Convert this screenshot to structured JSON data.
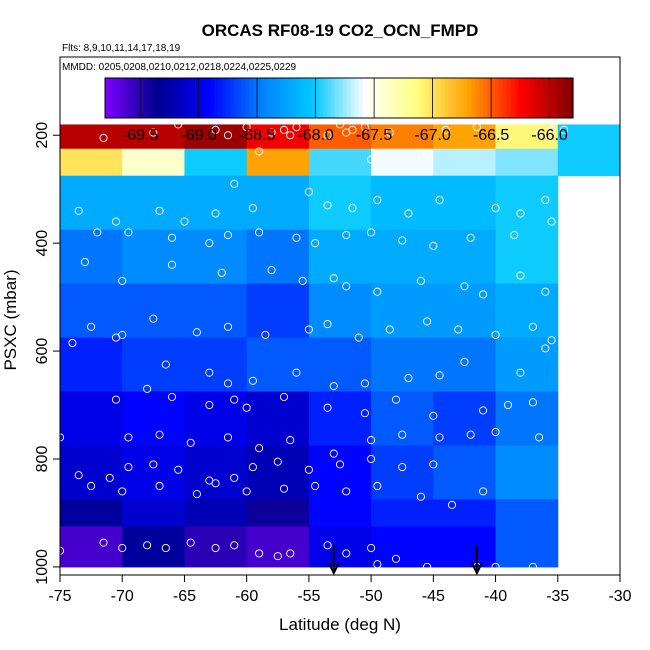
{
  "chart_data": {
    "type": "heatmap",
    "title": "ORCAS RF08-19 CO2_OCN_FMPD",
    "subtitle_flights": "Flts: 8,9,10,11,14,17,18,19",
    "subtitle_dates": "MMDD: 0205,0208,0210,0212,0218,0224,0225,0229",
    "xlabel": "Latitude (deg N)",
    "ylabel": "PSXC (mbar)",
    "xlim": [
      -75,
      -30
    ],
    "ylim": [
      1000,
      100
    ],
    "x_ticks": [
      -75,
      -70,
      -65,
      -60,
      -55,
      -50,
      -45,
      -40,
      -35,
      -30
    ],
    "x_tick_labels": [
      "-75",
      "-70",
      "-65",
      "-60",
      "-55",
      "-50",
      "-45",
      "-40",
      "-35",
      "-30"
    ],
    "y_ticks": [
      200,
      400,
      600,
      800,
      1000
    ],
    "y_tick_labels": [
      "200",
      "400",
      "600",
      "800",
      "1000"
    ],
    "colorbar": {
      "range": [
        -69.8,
        -65.8
      ],
      "ticks": [
        -69.5,
        -69.0,
        -68.5,
        -68.0,
        -67.5,
        -67.0,
        -66.5,
        -66.0
      ],
      "tick_labels": [
        "-69.5",
        "-69.0",
        "-68.5",
        "-68.0",
        "-67.5",
        "-67.0",
        "-66.5",
        "-66.0"
      ],
      "colors": [
        "#7f00ff",
        "#00008f",
        "#0000ff",
        "#0080ff",
        "#00c8ff",
        "#ffffff",
        "#ffff80",
        "#ffa000",
        "#ff0000",
        "#800000"
      ]
    },
    "x_bins": [
      -75,
      -70,
      -65,
      -60,
      -55,
      -50,
      -45,
      -40,
      -35,
      -30
    ],
    "y_bins": [
      100,
      225,
      275,
      325,
      375,
      425,
      475,
      525,
      575,
      625,
      675,
      725,
      775,
      825,
      875,
      925,
      975,
      1025
    ],
    "grid_x_step": 5,
    "grid_p_step": 50,
    "cells": [
      [
        -66.0,
        -66.0,
        -65.9,
        -66.2,
        -66.5,
        -66.6,
        -66.7,
        -67.1,
        -68.0
      ],
      [
        -67.0,
        -67.4,
        -68.0,
        -66.7,
        -67.9,
        -67.6,
        -67.7,
        -67.8,
        -68.0
      ],
      [
        -68.2,
        -68.2,
        -68.2,
        -68.2,
        -68.0,
        -68.1,
        -68.1,
        -68.0,
        null
      ],
      [
        -68.5,
        -68.4,
        -68.4,
        -68.5,
        -68.2,
        -68.2,
        -68.2,
        -68.0,
        null
      ],
      [
        -68.6,
        -68.6,
        -68.6,
        -68.7,
        -68.4,
        -68.3,
        -68.3,
        -68.2,
        null
      ],
      [
        -68.8,
        -68.7,
        -68.7,
        -68.6,
        -68.6,
        -68.5,
        -68.5,
        -68.3,
        null
      ],
      [
        -69.0,
        -68.9,
        -69.0,
        -69.1,
        -68.8,
        -68.6,
        -68.7,
        -68.5,
        null
      ],
      [
        -69.1,
        -69.0,
        -69.1,
        -69.2,
        -68.9,
        -68.7,
        -68.6,
        -68.4,
        null
      ],
      [
        -69.3,
        -69.1,
        -69.2,
        -69.4,
        -68.9,
        -68.8,
        -68.8,
        -68.6,
        null
      ],
      [
        -69.6,
        -69.3,
        -69.5,
        -69.6,
        -69.0,
        -68.9,
        -68.9,
        -68.6,
        null
      ]
    ],
    "cell_rows_pressure": [
      [
        100,
        225
      ],
      [
        225,
        275
      ],
      [
        275,
        375
      ],
      [
        375,
        475
      ],
      [
        475,
        575
      ],
      [
        575,
        675
      ],
      [
        675,
        775
      ],
      [
        775,
        875
      ],
      [
        875,
        925
      ],
      [
        925,
        1025
      ]
    ],
    "arrows_lat": [
      -53,
      -41.5
    ],
    "sample_points": [
      [
        -71.5,
        205
      ],
      [
        -67.5,
        195
      ],
      [
        -65.5,
        180
      ],
      [
        -62.5,
        190
      ],
      [
        -61.5,
        200
      ],
      [
        -60.0,
        185
      ],
      [
        -58.0,
        195
      ],
      [
        -57.0,
        190
      ],
      [
        -56.5,
        200
      ],
      [
        -56.0,
        185
      ],
      [
        -53.5,
        200
      ],
      [
        -52.5,
        180
      ],
      [
        -52.0,
        195
      ],
      [
        -51.5,
        190
      ],
      [
        -50.5,
        185
      ],
      [
        -48.5,
        195
      ],
      [
        -44.0,
        190
      ],
      [
        -41.5,
        185
      ],
      [
        -39.0,
        205
      ],
      [
        -36.5,
        195
      ],
      [
        -35.5,
        190
      ],
      [
        -34.5,
        190
      ],
      [
        -59.0,
        230
      ],
      [
        -50.0,
        245
      ],
      [
        -45.5,
        235
      ],
      [
        -61.0,
        290
      ],
      [
        -73.5,
        340
      ],
      [
        -70.5,
        360
      ],
      [
        -67.0,
        340
      ],
      [
        -65.0,
        360
      ],
      [
        -62.5,
        345
      ],
      [
        -59.5,
        335
      ],
      [
        -55.0,
        305
      ],
      [
        -53.5,
        330
      ],
      [
        -51.5,
        335
      ],
      [
        -49.5,
        320
      ],
      [
        -47.0,
        345
      ],
      [
        -44.5,
        320
      ],
      [
        -40.0,
        335
      ],
      [
        -38.0,
        345
      ],
      [
        -36.0,
        320
      ],
      [
        -35.5,
        360
      ],
      [
        -72.0,
        380
      ],
      [
        -69.5,
        380
      ],
      [
        -66.0,
        390
      ],
      [
        -63.0,
        400
      ],
      [
        -61.5,
        385
      ],
      [
        -59.0,
        380
      ],
      [
        -56.0,
        390
      ],
      [
        -54.5,
        400
      ],
      [
        -52.0,
        385
      ],
      [
        -50.0,
        380
      ],
      [
        -47.5,
        395
      ],
      [
        -45.0,
        405
      ],
      [
        -42.0,
        390
      ],
      [
        -38.5,
        385
      ],
      [
        -73.0,
        435
      ],
      [
        -70.0,
        470
      ],
      [
        -66.0,
        440
      ],
      [
        -62.0,
        455
      ],
      [
        -58.0,
        450
      ],
      [
        -55.5,
        470
      ],
      [
        -53.0,
        465
      ],
      [
        -52.0,
        480
      ],
      [
        -49.5,
        490
      ],
      [
        -46.0,
        470
      ],
      [
        -42.5,
        480
      ],
      [
        -41.0,
        495
      ],
      [
        -38.0,
        460
      ],
      [
        -36.0,
        490
      ],
      [
        -72.5,
        555
      ],
      [
        -70.0,
        570
      ],
      [
        -67.5,
        540
      ],
      [
        -64.0,
        565
      ],
      [
        -61.5,
        555
      ],
      [
        -58.5,
        570
      ],
      [
        -55.0,
        560
      ],
      [
        -53.5,
        550
      ],
      [
        -51.0,
        575
      ],
      [
        -48.5,
        560
      ],
      [
        -45.5,
        545
      ],
      [
        -43.0,
        560
      ],
      [
        -40.0,
        570
      ],
      [
        -37.0,
        555
      ],
      [
        -35.5,
        580
      ],
      [
        -74.0,
        585
      ],
      [
        -70.5,
        575
      ],
      [
        -66.5,
        625
      ],
      [
        -63.0,
        640
      ],
      [
        -61.5,
        660
      ],
      [
        -59.5,
        655
      ],
      [
        -56.0,
        640
      ],
      [
        -53.0,
        665
      ],
      [
        -50.5,
        660
      ],
      [
        -47.0,
        650
      ],
      [
        -44.5,
        645
      ],
      [
        -42.5,
        620
      ],
      [
        -38.0,
        640
      ],
      [
        -36.0,
        595
      ],
      [
        -70.5,
        690
      ],
      [
        -68.0,
        670
      ],
      [
        -66.0,
        685
      ],
      [
        -63.0,
        700
      ],
      [
        -61.0,
        690
      ],
      [
        -60.0,
        705
      ],
      [
        -57.0,
        685
      ],
      [
        -53.5,
        705
      ],
      [
        -50.5,
        715
      ],
      [
        -48.0,
        690
      ],
      [
        -45.0,
        720
      ],
      [
        -41.0,
        710
      ],
      [
        -39.0,
        700
      ],
      [
        -37.0,
        695
      ],
      [
        -75.0,
        760
      ],
      [
        -69.5,
        760
      ],
      [
        -67.0,
        755
      ],
      [
        -64.5,
        770
      ],
      [
        -61.5,
        760
      ],
      [
        -59.0,
        780
      ],
      [
        -56.5,
        765
      ],
      [
        -53.0,
        790
      ],
      [
        -50.0,
        765
      ],
      [
        -47.5,
        755
      ],
      [
        -44.5,
        760
      ],
      [
        -42.0,
        755
      ],
      [
        -40.0,
        750
      ],
      [
        -36.5,
        760
      ],
      [
        -73.5,
        830
      ],
      [
        -71.0,
        835
      ],
      [
        -69.5,
        815
      ],
      [
        -67.5,
        810
      ],
      [
        -65.5,
        820
      ],
      [
        -63.0,
        840
      ],
      [
        -61.0,
        835
      ],
      [
        -59.5,
        815
      ],
      [
        -57.5,
        805
      ],
      [
        -55.0,
        820
      ],
      [
        -52.5,
        810
      ],
      [
        -50.0,
        800
      ],
      [
        -47.5,
        815
      ],
      [
        -45.0,
        810
      ],
      [
        -72.5,
        850
      ],
      [
        -70.0,
        860
      ],
      [
        -67.0,
        850
      ],
      [
        -64.0,
        865
      ],
      [
        -62.5,
        845
      ],
      [
        -60.0,
        860
      ],
      [
        -57.0,
        855
      ],
      [
        -54.5,
        850
      ],
      [
        -52.0,
        860
      ],
      [
        -49.5,
        850
      ],
      [
        -46.0,
        870
      ],
      [
        -43.5,
        885
      ],
      [
        -41.0,
        860
      ],
      [
        -75.0,
        970
      ],
      [
        -71.5,
        955
      ],
      [
        -70.0,
        965
      ],
      [
        -68.0,
        960
      ],
      [
        -66.5,
        965
      ],
      [
        -64.5,
        955
      ],
      [
        -62.5,
        965
      ],
      [
        -61.0,
        960
      ],
      [
        -59.0,
        975
      ],
      [
        -57.5,
        980
      ],
      [
        -56.5,
        975
      ],
      [
        -53.5,
        960
      ],
      [
        -52.0,
        975
      ],
      [
        -50.0,
        965
      ],
      [
        -48.0,
        985
      ],
      [
        -45.5,
        1000
      ],
      [
        -41.5,
        1000
      ],
      [
        -40.0,
        1000
      ],
      [
        -37.0,
        1000
      ],
      [
        -49.5,
        995
      ]
    ]
  }
}
